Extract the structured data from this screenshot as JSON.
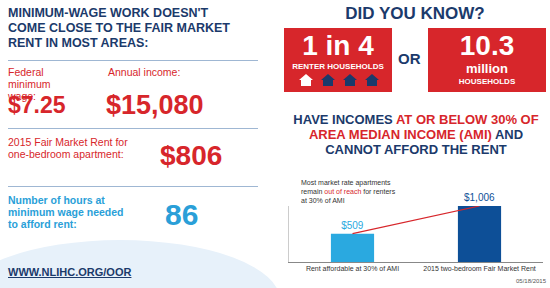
{
  "left": {
    "heading": "MINIMUM-WAGE WORK DOESN'T COME CLOSE TO THE FAIR MARKET RENT IN MOST AREAS:",
    "items": [
      {
        "label": "Federal minimum wage:",
        "value": "$7.25"
      },
      {
        "label": "Annual income:",
        "value": "$15,080"
      },
      {
        "label": "2015 Fair Market Rent for one-bedroom apartment:",
        "value": "$806"
      },
      {
        "label": "Number of hours at minimum wage needed to afford rent:",
        "value": "86"
      }
    ],
    "url": "WWW.NLIHC.ORG/OOR"
  },
  "right": {
    "banner": "DID YOU KNOW?",
    "stat1": {
      "number": "1 in 4",
      "label": "RENTER HOUSEHOLDS"
    },
    "connector": "OR",
    "stat2": {
      "number": "10.3",
      "unit": "million",
      "label": "HOUSEHOLDS"
    },
    "statement": [
      {
        "text": "HAVE INCOMES ",
        "highlight": false
      },
      {
        "text": "AT OR BELOW 30% OF AREA MEDIAN INCOME (AMI)",
        "highlight": true
      },
      {
        "text": " AND CANNOT AFFORD THE RENT",
        "highlight": false
      }
    ],
    "date": "05/18/2015"
  },
  "chart_data": {
    "type": "bar",
    "categories": [
      "Rent affordable at 30% of AMI",
      "2015 two-bedroom Fair Market Rent"
    ],
    "values": [
      509,
      1006
    ],
    "value_labels": [
      "$509",
      "$1,006"
    ],
    "colors": [
      "#2aa9e0",
      "#0d4f97"
    ],
    "ylim": [
      0,
      1006
    ],
    "yticks": [],
    "grid": false,
    "data_labels": true,
    "tick_labels": "x",
    "annotation": [
      [
        {
          "text": "Most market rate apartments",
          "highlight": false
        }
      ],
      [
        {
          "text": "remain ",
          "highlight": false
        },
        {
          "text": "out of reach",
          "highlight": true
        },
        {
          "text": " for renters",
          "highlight": false
        }
      ],
      [
        {
          "text": "at 30% of AMI",
          "highlight": false
        }
      ]
    ]
  }
}
